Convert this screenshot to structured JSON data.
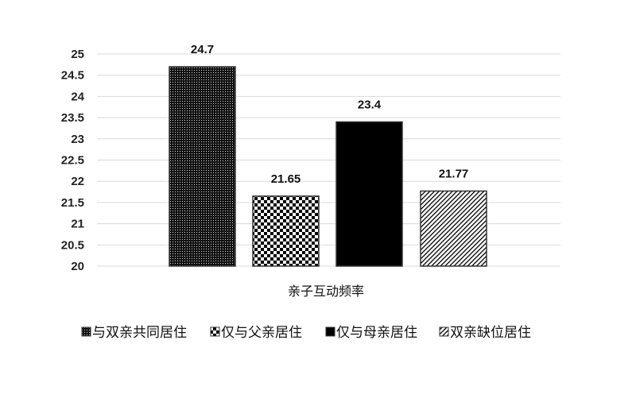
{
  "chart_data": {
    "type": "bar",
    "title": "",
    "xlabel": "",
    "ylabel": "",
    "categories": [
      "亲子互动频率"
    ],
    "ylim": [
      20,
      25
    ],
    "yticks": [
      20,
      20.5,
      21,
      21.5,
      22,
      22.5,
      23,
      23.5,
      24,
      24.5,
      25
    ],
    "ytick_labels": [
      "20",
      "20.5",
      "21",
      "21.5",
      "22",
      "22.5",
      "23",
      "23.5",
      "24",
      "24.5",
      "25"
    ],
    "grid": true,
    "legend_placement": "bottom",
    "series": [
      {
        "name": "与双亲共同居住",
        "values": [
          24.7
        ],
        "label": "24.7",
        "pattern": "dotted-dark"
      },
      {
        "name": "仅与父亲居住",
        "values": [
          21.65
        ],
        "label": "21.65",
        "pattern": "checkerboard"
      },
      {
        "name": "仅与母亲居住",
        "values": [
          23.4
        ],
        "label": "23.4",
        "pattern": "solid-black"
      },
      {
        "name": "双亲缺位居住",
        "values": [
          21.77
        ],
        "label": "21.77",
        "pattern": "diagonal-stripes"
      }
    ],
    "colors": {
      "grid": "#d9d9d9",
      "bar_outline": "#333333",
      "fill": "#000000"
    }
  }
}
